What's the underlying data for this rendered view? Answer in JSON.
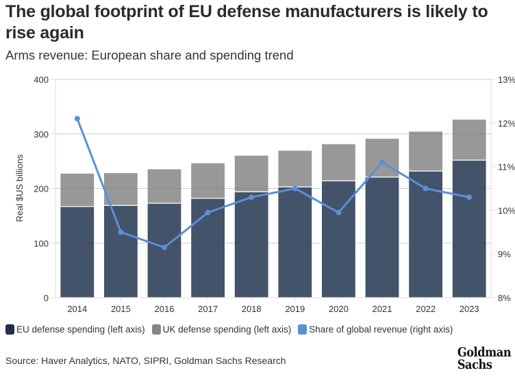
{
  "header": {
    "title": "The global footprint of EU defense manufacturers is likely to rise again",
    "subtitle": "Arms revenue: European share and spending trend"
  },
  "footer": {
    "source": "Source: Haver Analytics, NATO, SIPRI, Goldman Sachs Research",
    "logo_line1": "Goldman",
    "logo_line2": "Sachs"
  },
  "colors": {
    "eu": "#435369",
    "uk": "#989898",
    "share": "#5b8fd6",
    "grid": "#dddddd"
  },
  "chart_data": {
    "type": "bar",
    "stacked": true,
    "title": "Arms revenue: European share and spending trend",
    "xlabel": "",
    "ylabel": "Real $US billions",
    "y2label": "",
    "categories": [
      "2014",
      "2015",
      "2016",
      "2017",
      "2018",
      "2019",
      "2020",
      "2021",
      "2022",
      "2023"
    ],
    "ylim": [
      0,
      400
    ],
    "yticks": [
      0,
      100,
      200,
      300,
      400
    ],
    "y2lim": [
      8,
      13
    ],
    "y2ticks": [
      "8%",
      "9%",
      "10%",
      "11%",
      "12%",
      "13%"
    ],
    "grid": true,
    "legend_position": "bottom",
    "series": [
      {
        "name": "EU defense spending (left axis)",
        "type": "bar",
        "axis": "left",
        "values": [
          167,
          169,
          173,
          182,
          194,
          203,
          214,
          221,
          232,
          252
        ]
      },
      {
        "name": "UK defense spending (left axis)",
        "type": "bar",
        "axis": "left",
        "values": [
          61,
          60,
          63,
          65,
          67,
          67,
          68,
          71,
          73,
          75
        ]
      },
      {
        "name": "Share of global revenue (right axis)",
        "type": "line",
        "axis": "right",
        "unit": "%",
        "values": [
          12.1,
          9.5,
          9.15,
          9.95,
          10.3,
          10.5,
          9.95,
          11.1,
          10.5,
          10.3
        ]
      }
    ]
  }
}
